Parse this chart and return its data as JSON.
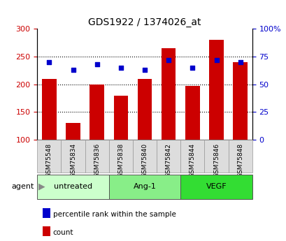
{
  "title": "GDS1922 / 1374026_at",
  "samples": [
    "GSM75548",
    "GSM75834",
    "GSM75836",
    "GSM75838",
    "GSM75840",
    "GSM75842",
    "GSM75844",
    "GSM75846",
    "GSM75848"
  ],
  "counts": [
    210,
    130,
    200,
    180,
    210,
    265,
    197,
    280,
    240
  ],
  "percentile_ranks": [
    70,
    63,
    68,
    65,
    63,
    72,
    65,
    72,
    70
  ],
  "groups": [
    {
      "label": "untreated",
      "indices": [
        0,
        1,
        2
      ],
      "color": "#ccffcc"
    },
    {
      "label": "Ang-1",
      "indices": [
        3,
        4,
        5
      ],
      "color": "#88ee88"
    },
    {
      "label": "VEGF",
      "indices": [
        6,
        7,
        8
      ],
      "color": "#33dd33"
    }
  ],
  "ylim_left": [
    100,
    300
  ],
  "ylim_right": [
    0,
    100
  ],
  "yticks_left": [
    100,
    150,
    200,
    250,
    300
  ],
  "yticks_right": [
    0,
    25,
    50,
    75,
    100
  ],
  "ytick_labels_right": [
    "0",
    "25",
    "50",
    "75",
    "100%"
  ],
  "bar_color": "#cc0000",
  "dot_color": "#0000cc",
  "bar_width": 0.6,
  "legend_items": [
    {
      "label": "count",
      "color": "#cc0000"
    },
    {
      "label": "percentile rank within the sample",
      "color": "#0000cc"
    }
  ],
  "agent_label": "agent",
  "figsize": [
    4.1,
    3.45
  ],
  "dpi": 100
}
